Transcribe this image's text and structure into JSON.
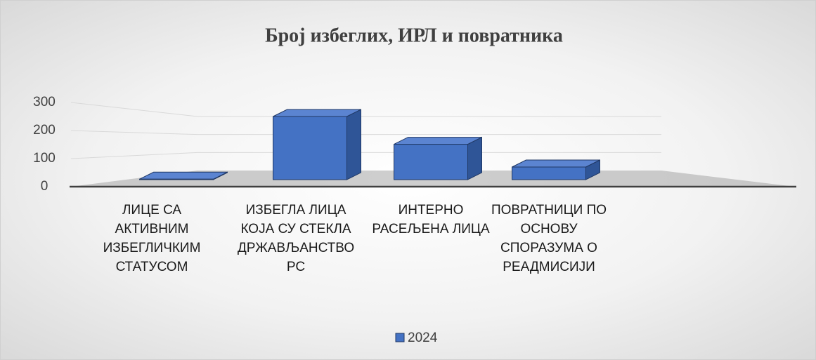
{
  "chart_data": {
    "type": "bar3d",
    "title": "Број избеглих, ИРЛ и повратника",
    "categories": [
      "ЛИЦЕ СА АКТИВНИМ ИЗБЕГЛИЧКИМ СТАТУСОМ",
      "ИЗБЕГЛА ЛИЦА КОЈА СУ СТЕКЛА ДРЖАВЉАНСТВО РС",
      "ИНТЕРНО РАСЕЉЕНА ЛИЦА",
      "ПОВРАТНИЦИ ПО ОСНОВУ СПОРАЗУМА О РЕАДМИСИЈИ"
    ],
    "series": [
      {
        "name": "2024",
        "color": "#4472c4",
        "values": [
          2,
          250,
          140,
          50
        ]
      }
    ],
    "ylim": [
      0,
      300
    ],
    "yticks": [
      0,
      100,
      200,
      300
    ],
    "grid": true,
    "legend": "bottom"
  }
}
